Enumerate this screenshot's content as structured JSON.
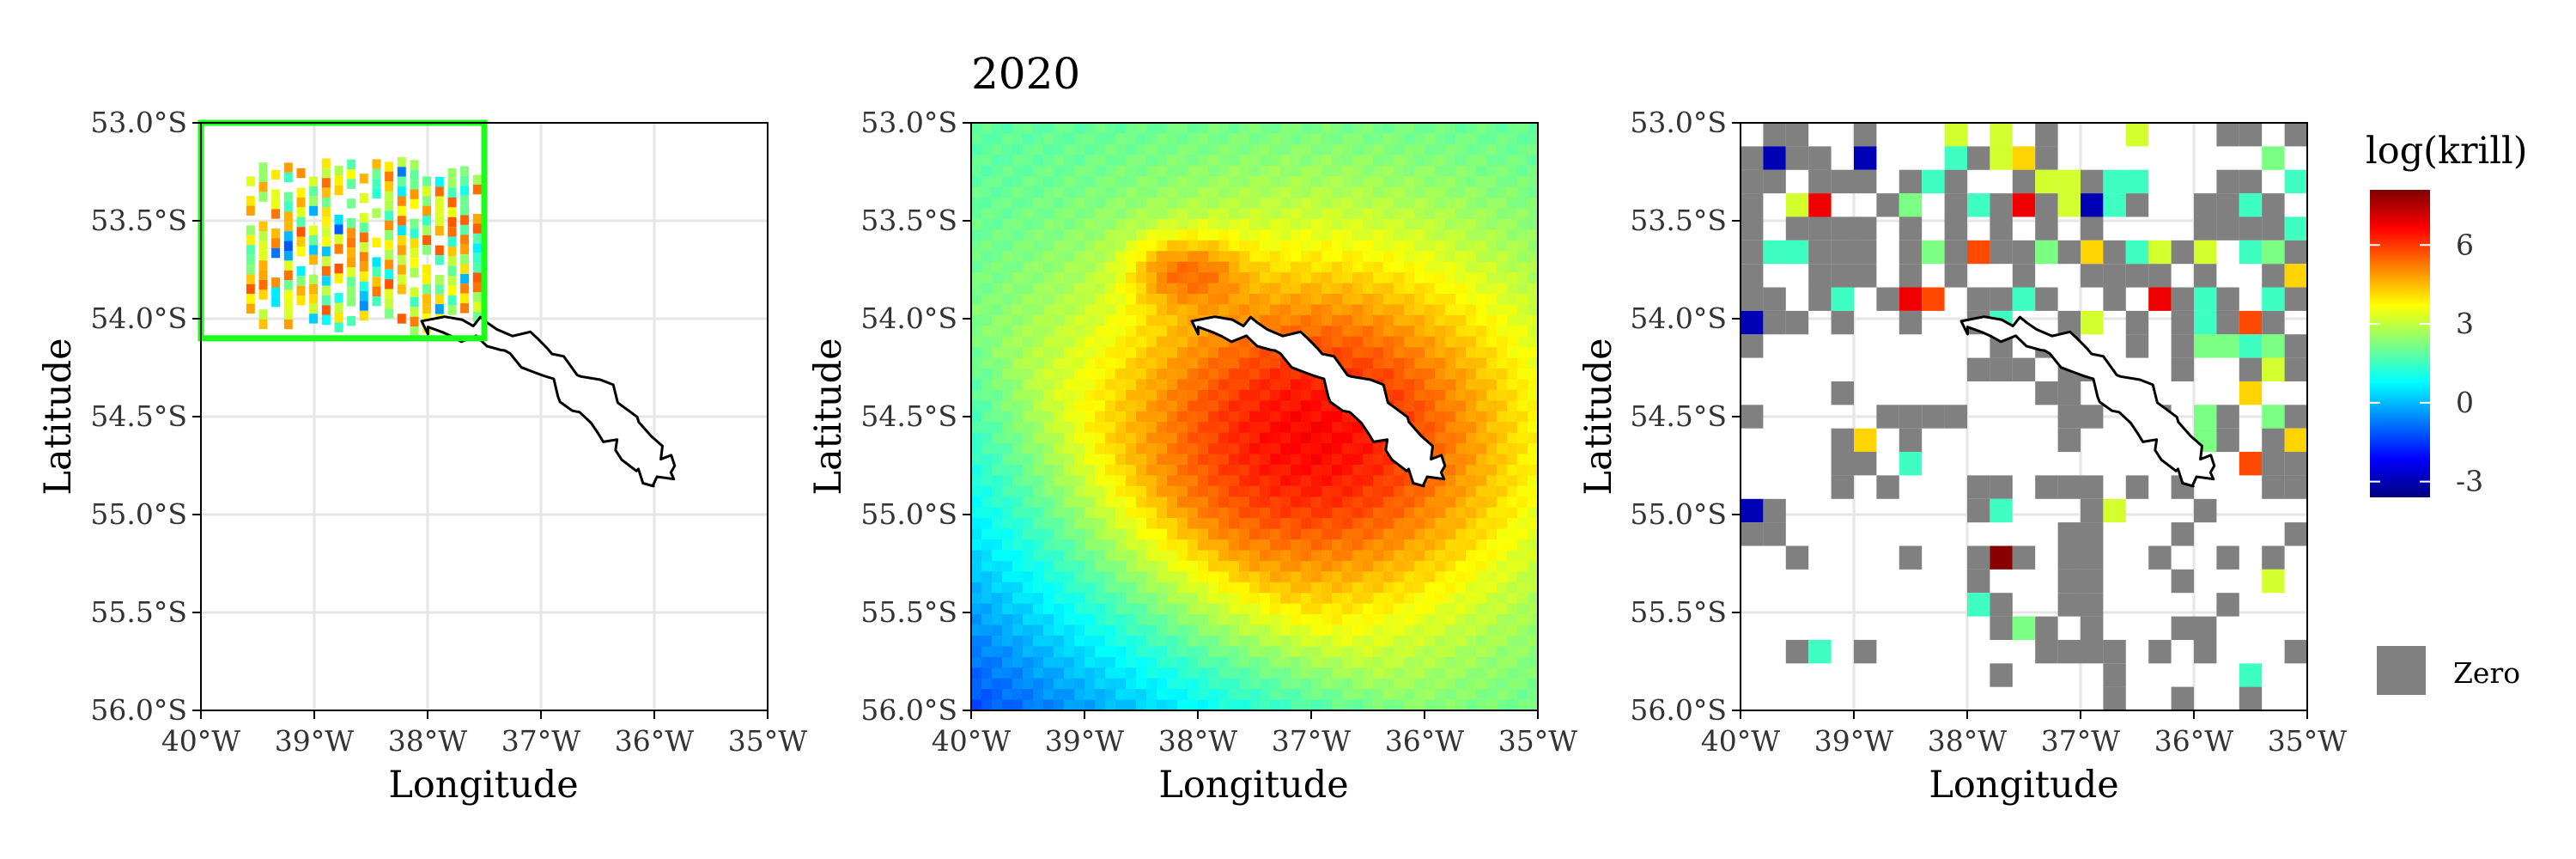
{
  "title": "2020",
  "colors": {
    "grid": "#e6e6e6",
    "highlight_box": "#1aff1a",
    "zero_fill": "#808080",
    "coast": "#000000"
  },
  "colorbar": {
    "title": "log(krill)",
    "ticks": [
      "-3",
      "0",
      "3",
      "6"
    ],
    "range": [
      -3.6,
      8.1
    ],
    "palette": [
      "#00007f",
      "#0000ff",
      "#007fff",
      "#00ffff",
      "#7fff7f",
      "#ffff00",
      "#ff7f00",
      "#ff0000",
      "#7f0000"
    ],
    "zero_label": "Zero"
  },
  "chart_data": [
    {
      "type": "heatmap",
      "panel": "left",
      "title": "",
      "xlabel": "Longitude",
      "ylabel": "Latitude",
      "xlim": [
        -40,
        -35
      ],
      "ylim": [
        -56,
        -53
      ],
      "x_ticks": [
        "40°W",
        "39°W",
        "38°W",
        "37°W",
        "36°W",
        "35°W"
      ],
      "y_ticks": [
        "53.0°S",
        "53.5°S",
        "54.0°S",
        "54.5°S",
        "55.0°S",
        "55.5°S",
        "56.0°S"
      ],
      "survey_region": {
        "lon": [
          -40,
          -37.5
        ],
        "lat": [
          -54.1,
          -53.0
        ]
      },
      "survey_tracks": {
        "lon_start": -39.6,
        "lon_end": -37.6,
        "track_count": 19,
        "lat_top": -53.15,
        "lat_bottom": -54.05
      }
    },
    {
      "type": "heatmap",
      "panel": "middle",
      "title": "2020",
      "xlabel": "Longitude",
      "ylabel": "Latitude",
      "xlim": [
        -40,
        -35
      ],
      "ylim": [
        -56,
        -53
      ],
      "x_ticks": [
        "40°W",
        "39°W",
        "38°W",
        "37°W",
        "36°W",
        "35°W"
      ],
      "y_ticks": [
        "53.0°S",
        "53.5°S",
        "54.0°S",
        "54.5°S",
        "55.0°S",
        "55.5°S",
        "56.0°S"
      ],
      "field": {
        "center_lon": -37.0,
        "center_lat": -54.6,
        "peak_value": 6.6,
        "edge_value": 1.8,
        "southwest_value": 1.0,
        "hotspots": [
          {
            "lon": -38.3,
            "lat": -53.75,
            "value": 5.9
          },
          {
            "lon": -37.9,
            "lat": -53.75,
            "value": 5.6
          }
        ]
      }
    },
    {
      "type": "heatmap",
      "panel": "right",
      "title": "",
      "xlabel": "Longitude",
      "ylabel": "Latitude",
      "xlim": [
        -40,
        -35
      ],
      "ylim": [
        -56,
        -53
      ],
      "x_ticks": [
        "40°W",
        "39°W",
        "38°W",
        "37°W",
        "36°W",
        "35°W"
      ],
      "y_ticks": [
        "53.0°S",
        "53.5°S",
        "54.0°S",
        "54.5°S",
        "55.0°S",
        "55.5°S",
        "56.0°S"
      ],
      "grid_cols": 25,
      "grid_rows": 25,
      "cell_legend": "0 = empty, Z = zero catch, otherwise log(krill) value",
      "cells": [
        "0ZZ00Z0003030Z0003000ZZ0Z",
        "Z-1ZZ0-10001Z34Z0000000002",
        "ZZ0ZZZ0Z1Z00Z33Z11000ZZ01",
        "Z03700Z20Z1Z7Z3-11Z00ZZ1Z",
        "Z0ZZZZ0Z0Z0Z0Z0Z0000ZZZZ1",
        "Z11ZZZ0Z2Z6ZZ2Z4Z13Z3012Z",
        "Z00ZZZ0Z0Z00Z00ZZZZ0Z00Z4",
        "ZZ0Z10Z760ZZ1Z00Z07Z1Z01Z",
        "-1ZZ0Z00Z00Z100Z30Z0Z1Z6Z",
        "Z0000000000Z0ZZ00Z0Z2212Z",
        "0000000000ZZZ0ZZ000Z00Z3Z",
        "0000Z00000000ZZ000000040",
        "Z00000ZZZZ0000ZZ00Z02Z02Z",
        "0000Z40Z000000Z000002Z0Z4",
        "0000ZZ01000000000000006ZZ",
        "0000Z0Z000ZZ0ZZZ0Z0Z000ZZ",
        "-1Z00000000Z1000Z3000Z",
        "ZZ000000000000ZZ000Z0000Z",
        "00Z0000Z00Z8Z0ZZ00Z00Z0Z0",
        "0000000000Z000ZZ000Z0003",
        "00000000001Z00ZZ00000Z000",
        "00000000000Z2Z0Z000ZZ0000",
        "00Z10Z0000000ZZZZ0Z0Z000Z",
        "00000000000Z0000Z00000100",
        "0000000000000000Z00Z00Z00"
      ]
    }
  ]
}
